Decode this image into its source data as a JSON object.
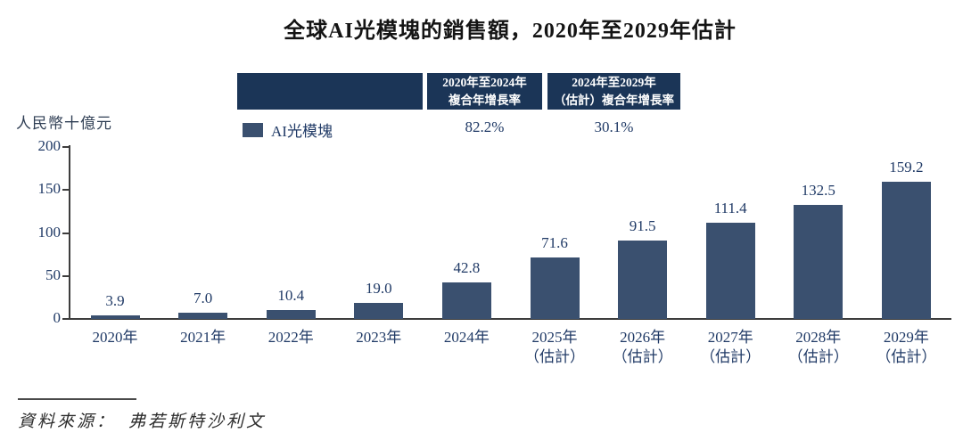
{
  "title": "全球AI光模塊的銷售額，2020年至2029年估計",
  "y_axis_title": "人民幣十億元",
  "legend": {
    "label": "AI光模塊",
    "color": "#3a506f"
  },
  "header_table": {
    "col1": {
      "line1": "2020年至2024年",
      "line2": "複合年增長率",
      "value": "82.2%"
    },
    "col2": {
      "line1": "2024年至2029年",
      "line2": "（估計）複合年增長率",
      "value": "30.1%"
    }
  },
  "source": {
    "label": "資料來源：",
    "name": "弗若斯特沙利文"
  },
  "colors": {
    "bar": "#3a506f",
    "header_bg": "#1b3557",
    "text_navy": "#203a66",
    "axis": "#3d3d3d"
  },
  "chart_data": {
    "type": "bar",
    "title": "全球AI光模塊的銷售額，2020年至2029年估計",
    "ylabel": "人民幣十億元",
    "xlabel": "",
    "categories": [
      {
        "label": "2020年",
        "sub": ""
      },
      {
        "label": "2021年",
        "sub": ""
      },
      {
        "label": "2022年",
        "sub": ""
      },
      {
        "label": "2023年",
        "sub": ""
      },
      {
        "label": "2024年",
        "sub": ""
      },
      {
        "label": "2025年",
        "sub": "（估計）"
      },
      {
        "label": "2026年",
        "sub": "（估計）"
      },
      {
        "label": "2027年",
        "sub": "（估計）"
      },
      {
        "label": "2028年",
        "sub": "（估計）"
      },
      {
        "label": "2029年",
        "sub": "（估計）"
      }
    ],
    "values": [
      3.9,
      7.0,
      10.4,
      19.0,
      42.8,
      71.6,
      91.5,
      111.4,
      132.5,
      159.2
    ],
    "ylim": [
      0,
      200
    ],
    "yticks": [
      0,
      50,
      100,
      150,
      200
    ],
    "grid": false,
    "legend_position": "top-left-of-cagr-table",
    "series_name": "AI光模塊",
    "cagr": [
      {
        "period": "2020年至2024年 複合年增長率",
        "value": "82.2%"
      },
      {
        "period": "2024年至2029年（估計）複合年增長率",
        "value": "30.1%"
      }
    ]
  }
}
